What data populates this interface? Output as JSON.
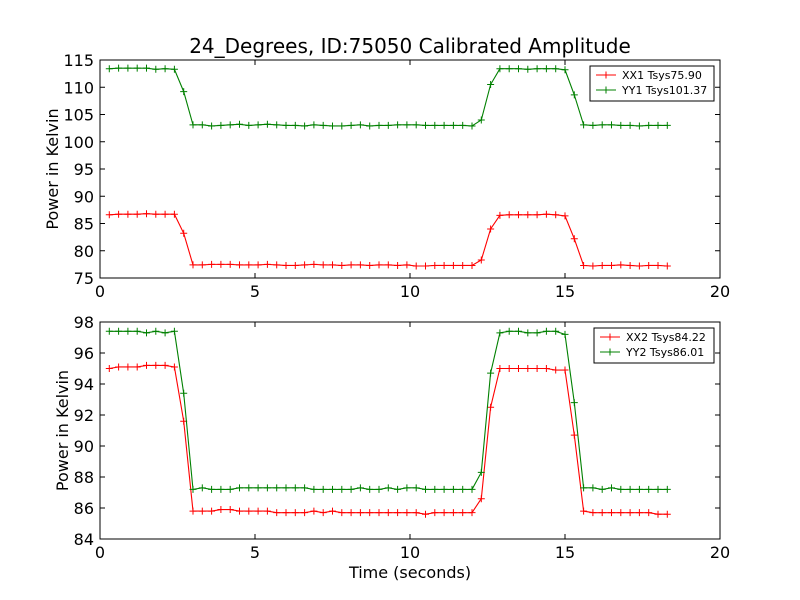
{
  "chart_data": [
    {
      "type": "line",
      "title": "24_Degrees, ID:75050 Calibrated Amplitude",
      "xlabel": "",
      "ylabel": "Power in Kelvin",
      "xlim": [
        0,
        20
      ],
      "ylim": [
        75,
        115
      ],
      "xticks": [
        0,
        5,
        10,
        15,
        20
      ],
      "yticks": [
        75,
        80,
        85,
        90,
        95,
        100,
        105,
        110,
        115
      ],
      "legend": "top-right",
      "grid": false,
      "x": [
        0.3,
        0.6,
        0.9,
        1.2,
        1.5,
        1.8,
        2.1,
        2.4,
        2.7,
        3.0,
        3.3,
        3.6,
        3.9,
        4.2,
        4.5,
        4.8,
        5.1,
        5.4,
        5.7,
        6.0,
        6.3,
        6.6,
        6.9,
        7.2,
        7.5,
        7.8,
        8.1,
        8.4,
        8.7,
        9.0,
        9.3,
        9.6,
        9.9,
        10.2,
        10.5,
        10.8,
        11.1,
        11.4,
        11.7,
        12.0,
        12.3,
        12.6,
        12.9,
        13.2,
        13.5,
        13.8,
        14.1,
        14.4,
        14.7,
        15.0,
        15.3,
        15.6,
        15.9,
        16.2,
        16.5,
        16.8,
        17.1,
        17.4,
        17.7,
        18.0,
        18.3
      ],
      "series": [
        {
          "name": "XX1 Tsys75.90",
          "color": "#ff0000",
          "values": [
            86.6,
            86.7,
            86.7,
            86.7,
            86.8,
            86.7,
            86.7,
            86.7,
            83.2,
            77.4,
            77.4,
            77.5,
            77.5,
            77.5,
            77.4,
            77.4,
            77.4,
            77.5,
            77.4,
            77.3,
            77.3,
            77.4,
            77.5,
            77.4,
            77.4,
            77.3,
            77.4,
            77.4,
            77.3,
            77.4,
            77.4,
            77.3,
            77.4,
            77.2,
            77.2,
            77.3,
            77.3,
            77.3,
            77.3,
            77.3,
            78.3,
            84.0,
            86.5,
            86.6,
            86.6,
            86.6,
            86.6,
            86.7,
            86.6,
            86.4,
            82.2,
            77.3,
            77.2,
            77.3,
            77.3,
            77.4,
            77.3,
            77.2,
            77.3,
            77.3,
            77.2
          ]
        },
        {
          "name": "YY1 Tsys101.37",
          "color": "#008000",
          "values": [
            113.4,
            113.5,
            113.5,
            113.5,
            113.5,
            113.3,
            113.4,
            113.3,
            109.2,
            103.1,
            103.1,
            102.9,
            103.0,
            103.1,
            103.2,
            103.0,
            103.1,
            103.2,
            103.1,
            103.0,
            103.0,
            102.9,
            103.1,
            103.0,
            102.9,
            102.9,
            103.0,
            103.1,
            102.9,
            103.0,
            103.0,
            103.1,
            103.1,
            103.1,
            103.0,
            103.0,
            103.0,
            103.0,
            103.0,
            102.9,
            104.0,
            110.5,
            113.4,
            113.4,
            113.4,
            113.3,
            113.4,
            113.4,
            113.4,
            113.2,
            108.6,
            103.1,
            103.0,
            103.1,
            103.1,
            103.0,
            103.0,
            102.9,
            103.0,
            103.0,
            103.0
          ]
        }
      ]
    },
    {
      "type": "line",
      "title": "",
      "xlabel": "Time (seconds)",
      "ylabel": "Power in Kelvin",
      "xlim": [
        0,
        20
      ],
      "ylim": [
        84,
        98
      ],
      "xticks": [
        0,
        5,
        10,
        15,
        20
      ],
      "yticks": [
        84,
        86,
        88,
        90,
        92,
        94,
        96,
        98
      ],
      "legend": "top-right",
      "grid": false,
      "x": [
        0.3,
        0.6,
        0.9,
        1.2,
        1.5,
        1.8,
        2.1,
        2.4,
        2.7,
        3.0,
        3.3,
        3.6,
        3.9,
        4.2,
        4.5,
        4.8,
        5.1,
        5.4,
        5.7,
        6.0,
        6.3,
        6.6,
        6.9,
        7.2,
        7.5,
        7.8,
        8.1,
        8.4,
        8.7,
        9.0,
        9.3,
        9.6,
        9.9,
        10.2,
        10.5,
        10.8,
        11.1,
        11.4,
        11.7,
        12.0,
        12.3,
        12.6,
        12.9,
        13.2,
        13.5,
        13.8,
        14.1,
        14.4,
        14.7,
        15.0,
        15.3,
        15.6,
        15.9,
        16.2,
        16.5,
        16.8,
        17.1,
        17.4,
        17.7,
        18.0,
        18.3
      ],
      "series": [
        {
          "name": "XX2 Tsys84.22",
          "color": "#ff0000",
          "values": [
            95.0,
            95.1,
            95.1,
            95.1,
            95.2,
            95.2,
            95.2,
            95.1,
            91.6,
            85.8,
            85.8,
            85.8,
            85.9,
            85.9,
            85.8,
            85.8,
            85.8,
            85.8,
            85.7,
            85.7,
            85.7,
            85.7,
            85.8,
            85.7,
            85.8,
            85.7,
            85.7,
            85.7,
            85.7,
            85.7,
            85.7,
            85.7,
            85.7,
            85.7,
            85.6,
            85.7,
            85.7,
            85.7,
            85.7,
            85.7,
            86.6,
            92.5,
            95.0,
            95.0,
            95.0,
            95.0,
            95.0,
            95.0,
            94.9,
            94.9,
            90.7,
            85.8,
            85.7,
            85.7,
            85.7,
            85.7,
            85.7,
            85.7,
            85.7,
            85.6,
            85.6
          ]
        },
        {
          "name": "YY2 Tsys86.01",
          "color": "#008000",
          "values": [
            97.4,
            97.4,
            97.4,
            97.4,
            97.3,
            97.4,
            97.3,
            97.4,
            93.4,
            87.2,
            87.3,
            87.2,
            87.2,
            87.2,
            87.3,
            87.3,
            87.3,
            87.3,
            87.3,
            87.3,
            87.3,
            87.3,
            87.2,
            87.2,
            87.2,
            87.2,
            87.2,
            87.3,
            87.2,
            87.2,
            87.3,
            87.2,
            87.3,
            87.3,
            87.2,
            87.2,
            87.2,
            87.2,
            87.2,
            87.2,
            88.3,
            94.7,
            97.3,
            97.4,
            97.4,
            97.3,
            97.3,
            97.4,
            97.4,
            97.2,
            92.8,
            87.3,
            87.3,
            87.2,
            87.3,
            87.2,
            87.2,
            87.2,
            87.2,
            87.2,
            87.2
          ]
        }
      ]
    }
  ]
}
